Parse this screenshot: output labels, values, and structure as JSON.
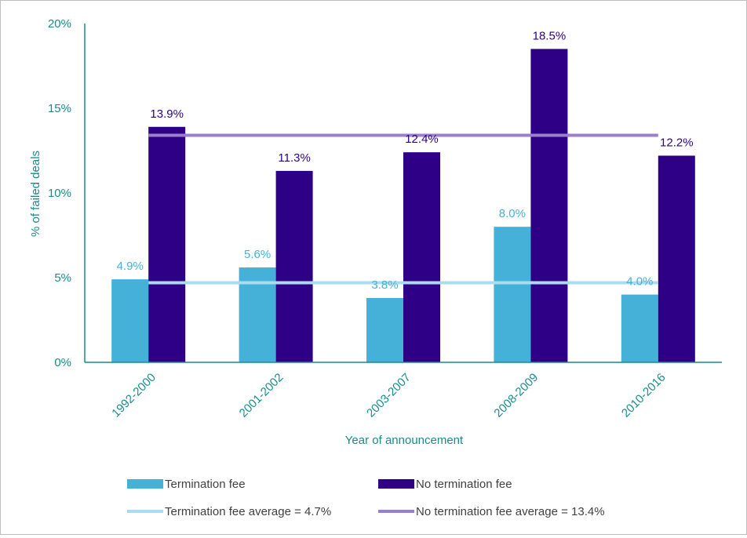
{
  "chart_data": {
    "type": "bar",
    "title": "",
    "xlabel": "Year of announcement",
    "ylabel": "% of failed deals",
    "ylim": [
      0,
      20
    ],
    "yticks": [
      "0%",
      "5%",
      "10%",
      "15%",
      "20%"
    ],
    "categories": [
      "1992-2000",
      "2001-2002",
      "2003-2007",
      "2008-2009",
      "2010-2016"
    ],
    "series": [
      {
        "name": "Termination fee",
        "values": [
          4.9,
          5.6,
          3.8,
          8.0,
          4.0
        ],
        "labels": [
          "4.9%",
          "5.6%",
          "3.8%",
          "8.0%",
          "4.0%"
        ],
        "color": "#45b1d9",
        "label_color": "#45b1d9"
      },
      {
        "name": "No termination fee",
        "values": [
          13.9,
          11.3,
          12.4,
          18.5,
          12.2
        ],
        "labels": [
          "13.9%",
          "11.3%",
          "12.4%",
          "18.5%",
          "12.2%"
        ],
        "color": "#2e0086",
        "label_color": "#2e0086"
      }
    ],
    "averages": [
      {
        "name": "Termination fee average = 4.7%",
        "value": 4.7,
        "color": "#a9dcef"
      },
      {
        "name": "No termination fee average = 13.4%",
        "value": 13.4,
        "color": "#9b7fcb"
      }
    ],
    "legend": "bottom",
    "grid": false,
    "colors": {
      "axis": "#1a8a8a",
      "tick_text": "#1a8a8a",
      "legend_text": "#404040"
    }
  }
}
